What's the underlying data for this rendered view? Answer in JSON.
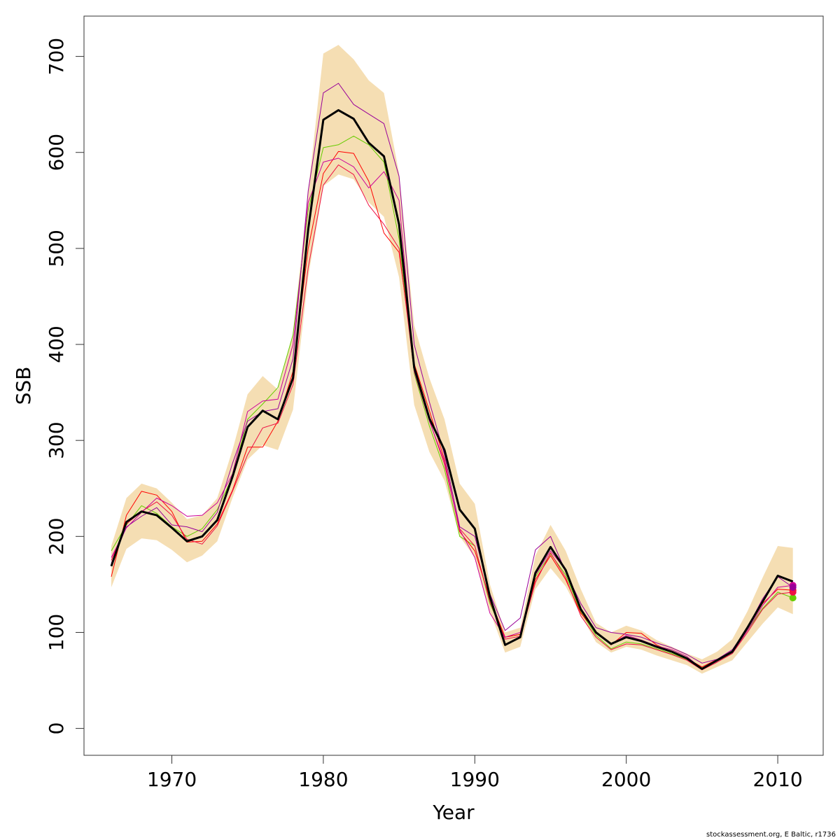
{
  "chart_data": {
    "type": "line",
    "title": "",
    "xlabel": "Year",
    "ylabel": "SSB",
    "xlim": [
      1964.2,
      2013.0
    ],
    "ylim": [
      -28,
      742
    ],
    "x_ticks": [
      1970,
      1980,
      1990,
      2000,
      2010
    ],
    "y_ticks": [
      0,
      100,
      200,
      300,
      400,
      500,
      600,
      700
    ],
    "grid": false,
    "legend": "none",
    "colors": {
      "band": "#f5deb3",
      "main": "#000000",
      "green": "#66cc00",
      "red": "#ff0000",
      "crimson": "#ee1144",
      "magenta": "#cc0099",
      "purple": "#990099"
    },
    "x": [
      1966,
      1967,
      1968,
      1969,
      1970,
      1971,
      1972,
      1973,
      1974,
      1975,
      1976,
      1977,
      1978,
      1979,
      1980,
      1981,
      1982,
      1983,
      1984,
      1985,
      1986,
      1987,
      1988,
      1989,
      1990,
      1991,
      1992,
      1993,
      1994,
      1995,
      1996,
      1997,
      1998,
      1999,
      2000,
      2001,
      2002,
      2003,
      2004,
      2005,
      2006,
      2007,
      2008,
      2009,
      2010,
      2011
    ],
    "band": {
      "upper": [
        190,
        240,
        255,
        250,
        235,
        218,
        222,
        240,
        290,
        348,
        367,
        353,
        410,
        560,
        703,
        712,
        697,
        675,
        662,
        578,
        420,
        365,
        322,
        255,
        234,
        150,
        100,
        105,
        180,
        212,
        185,
        145,
        110,
        100,
        107,
        102,
        92,
        85,
        78,
        72,
        80,
        93,
        122,
        157,
        190,
        188
      ],
      "lower": [
        147,
        187,
        198,
        196,
        186,
        173,
        180,
        195,
        240,
        280,
        295,
        290,
        332,
        470,
        565,
        577,
        572,
        548,
        533,
        470,
        337,
        288,
        258,
        200,
        178,
        122,
        79,
        85,
        145,
        167,
        148,
        118,
        90,
        79,
        85,
        82,
        76,
        71,
        66,
        57,
        64,
        71,
        90,
        109,
        126,
        119
      ]
    },
    "series": [
      {
        "role": "main",
        "values": [
          169,
          215,
          226,
          222,
          209,
          195,
          200,
          217,
          262,
          314,
          331,
          322,
          365,
          520,
          634,
          644,
          635,
          610,
          596,
          525,
          376,
          323,
          290,
          228,
          208,
          137,
          87,
          95,
          162,
          189,
          165,
          124,
          100,
          88,
          95,
          91,
          85,
          80,
          73,
          62,
          71,
          80,
          105,
          132,
          159,
          153
        ]
      },
      {
        "role": "green",
        "values": [
          185,
          212,
          232,
          224,
          210,
          200,
          208,
          228,
          262,
          322,
          338,
          355,
          410,
          540,
          605,
          608,
          617,
          608,
          590,
          510,
          370,
          315,
          270,
          200,
          190,
          130,
          95,
          98,
          158,
          182,
          160,
          121,
          97,
          83,
          90,
          88,
          83,
          78,
          72,
          63,
          70,
          78,
          102,
          125,
          142,
          136
        ]
      },
      {
        "role": "red",
        "values": [
          158,
          222,
          247,
          243,
          226,
          194,
          195,
          213,
          248,
          293,
          293,
          320,
          372,
          500,
          578,
          601,
          599,
          570,
          516,
          496,
          380,
          331,
          280,
          205,
          185,
          135,
          95,
          98,
          155,
          180,
          155,
          120,
          101,
          87,
          100,
          99,
          87,
          80,
          73,
          64,
          72,
          80,
          104,
          130,
          145,
          144
        ]
      },
      {
        "role": "crimson",
        "values": [
          175,
          213,
          226,
          236,
          222,
          197,
          192,
          211,
          247,
          285,
          313,
          318,
          358,
          480,
          566,
          587,
          577,
          545,
          525,
          500,
          372,
          321,
          275,
          208,
          190,
          132,
          93,
          96,
          152,
          183,
          157,
          117,
          95,
          82,
          88,
          87,
          82,
          77,
          71,
          61,
          69,
          78,
          100,
          124,
          140,
          142
        ]
      },
      {
        "role": "magenta",
        "values": [
          178,
          209,
          225,
          240,
          232,
          221,
          222,
          235,
          265,
          330,
          341,
          343,
          400,
          548,
          590,
          594,
          585,
          563,
          580,
          550,
          372,
          320,
          278,
          207,
          178,
          120,
          95,
          100,
          160,
          185,
          165,
          123,
          99,
          88,
          97,
          92,
          86,
          82,
          75,
          62,
          70,
          79,
          102,
          128,
          147,
          149
        ]
      },
      {
        "role": "purple",
        "values": [
          172,
          210,
          221,
          230,
          212,
          210,
          205,
          225,
          276,
          320,
          330,
          333,
          385,
          560,
          662,
          672,
          650,
          640,
          630,
          575,
          400,
          340,
          285,
          210,
          200,
          140,
          102,
          115,
          186,
          200,
          163,
          130,
          105,
          100,
          98,
          95,
          89,
          84,
          77,
          68,
          72,
          82,
          105,
          135,
          158,
          147
        ]
      }
    ]
  },
  "credit": "stockassessment.org, E Baltic, r1736"
}
